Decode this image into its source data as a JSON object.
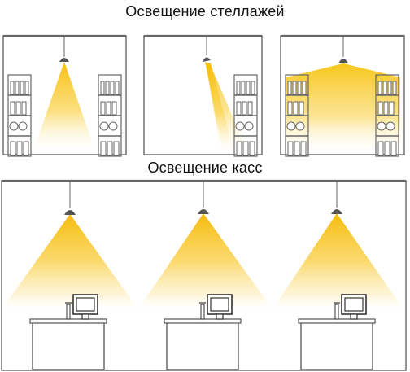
{
  "diagram": {
    "shelf_title": "Освещение стеллажей",
    "checkout_title": "Освещение касс",
    "colors": {
      "light": "#f7c21b",
      "light_fade": "#ffffff",
      "outline": "#555555",
      "text": "#111111"
    },
    "shelf_panels": [
      {
        "label": "shelf-lighting-center-beam"
      },
      {
        "label": "shelf-lighting-angled-beam"
      },
      {
        "label": "shelf-lighting-wide-flood"
      }
    ],
    "checkout_count": 3
  }
}
